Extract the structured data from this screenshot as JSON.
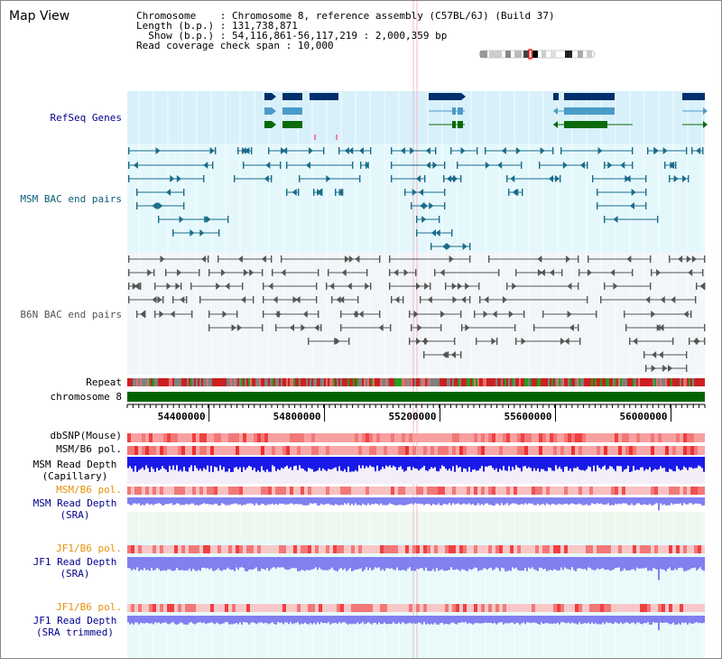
{
  "view_title": "Map View",
  "info": {
    "chromosome_key": "Chromosome",
    "chromosome_value": "Chromosome 8, reference assembly (C57BL/6J) (Build 37)",
    "length_key": "Length (b.p.)",
    "length_value": "131,738,871",
    "show_key": "Show (b.p.)",
    "show_value": "54,116,861-56,117,219 : 2,000,359 bp",
    "coverage_key": "Read coverage check span",
    "coverage_value": "10,000"
  },
  "tracks": {
    "refseq": "RefSeq Genes",
    "msm_bac": "MSM BAC end pairs",
    "b6n_bac": "B6N BAC end pairs",
    "repeat": "Repeat",
    "chromosome": "chromosome 8",
    "dbsnp": "dbSNP(Mouse)",
    "msm_b6_pol": "MSM/B6 pol.",
    "msm_depth_cap_1": "MSM Read Depth",
    "msm_depth_cap_2": "(Capillary)",
    "msm_b6_pol_sra": "MSM/B6 pol.",
    "msm_depth_sra_1": "MSM Read Depth",
    "msm_depth_sra_2": "(SRA)",
    "jf1_pol": "JF1/B6 pol.",
    "jf1_depth_1": "JF1 Read Depth",
    "jf1_depth_2": "(SRA)",
    "jf1_pol_trim": "JF1/B6 pol.",
    "jf1_depth_trim_1": "JF1 Read Depth",
    "jf1_depth_trim_2": "(SRA trimmed)"
  },
  "axis": {
    "ticks": [
      {
        "label": "54400000",
        "pos": 54400000
      },
      {
        "label": "54800000",
        "pos": 54800000
      },
      {
        "label": "55200000",
        "pos": 55200000
      },
      {
        "label": "55600000",
        "pos": 55600000
      },
      {
        "label": "56000000",
        "pos": 56000000
      }
    ],
    "start": 54116861,
    "end": 56117219
  },
  "colors": {
    "gene_navy": "#002f6c",
    "gene_blue": "#4a9cc8",
    "gene_green": "#0a6a0a",
    "msm_line": "#1a6b8a",
    "b6n_line": "#555555",
    "chromosome_bar": "#006400",
    "msm_label": "#0b5d7a",
    "ref_label": "#00008b",
    "pol_label_orange": "#e8900a",
    "depth_blue": "#1a1ae8",
    "depth_light": "#8080f0",
    "band_refseq": "#d8f0fa",
    "band_msm": "#e4f8fc",
    "band_b6n": "#f2f6f8",
    "band_sra": "#eef8ee",
    "band_jf1": "#e8fafa"
  }
}
